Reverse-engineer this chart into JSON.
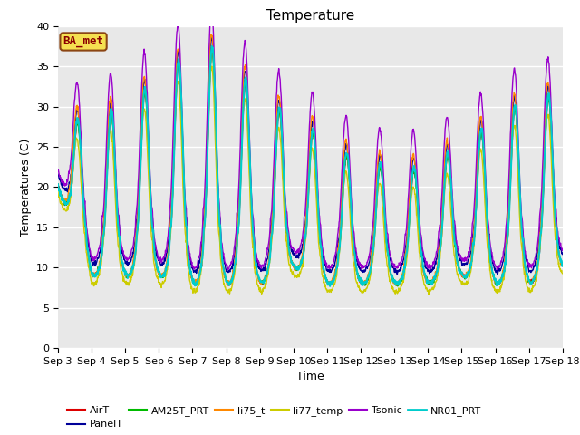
{
  "title": "Temperature",
  "ylabel": "Temperatures (C)",
  "xlabel": "Time",
  "ylim": [
    0,
    40
  ],
  "xlim_days": [
    0,
    15
  ],
  "x_tick_labels": [
    "Sep 3",
    "Sep 4",
    "Sep 5",
    "Sep 6",
    "Sep 7",
    "Sep 8",
    "Sep 9",
    "Sep 10",
    "Sep 11",
    "Sep 12",
    "Sep 13",
    "Sep 14",
    "Sep 15",
    "Sep 16",
    "Sep 17",
    "Sep 18"
  ],
  "x_tick_positions": [
    0,
    1,
    2,
    3,
    4,
    5,
    6,
    7,
    8,
    9,
    10,
    11,
    12,
    13,
    14,
    15
  ],
  "series_names": [
    "AirT",
    "PanelT",
    "AM25T_PRT",
    "li75_t",
    "li77_temp",
    "Tsonic",
    "NR01_PRT"
  ],
  "series_colors": [
    "#dd0000",
    "#000099",
    "#00bb00",
    "#ff8800",
    "#cccc00",
    "#9900cc",
    "#00cccc"
  ],
  "series_linewidths": [
    1.0,
    1.0,
    1.0,
    1.0,
    1.0,
    1.0,
    1.5
  ],
  "ba_met_label": "BA_met",
  "ba_met_fontsize": 9,
  "background_color": "#e8e8e8",
  "fig_background": "#ffffff",
  "grid_color": "#ffffff",
  "title_fontsize": 11,
  "axis_label_fontsize": 9,
  "tick_label_fontsize": 8,
  "legend_fontsize": 8,
  "n_points": 1500,
  "days": 15,
  "peak_amp_envelope": [
    28,
    28,
    30,
    33,
    37,
    37,
    30,
    29,
    25,
    23,
    22,
    22,
    25,
    28,
    31,
    31
  ],
  "min_envelope": [
    20,
    9,
    9,
    9,
    8,
    8,
    8,
    10,
    8,
    8,
    8,
    8,
    9,
    8,
    8,
    10
  ]
}
